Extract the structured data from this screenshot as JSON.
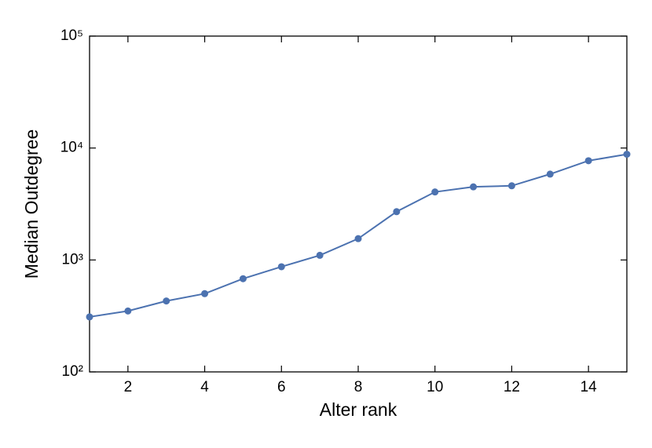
{
  "chart_data": {
    "type": "line",
    "x_label": "Alter rank",
    "y_label": "Median Outdegree",
    "x": [
      1,
      2,
      3,
      4,
      5,
      6,
      7,
      8,
      9,
      10,
      11,
      12,
      13,
      14,
      15
    ],
    "series": [
      {
        "name": "Median Outdegree",
        "color": "#4c72b0",
        "values": [
          310,
          350,
          430,
          500,
          680,
          870,
          1100,
          1550,
          2700,
          4050,
          4500,
          4600,
          5850,
          7700,
          8800
        ]
      }
    ],
    "xlim": [
      1,
      15
    ],
    "xticks": [
      2,
      4,
      6,
      8,
      10,
      12,
      14
    ],
    "ylim": [
      100,
      100000
    ],
    "y_log": true,
    "yticks": [
      {
        "value": 100,
        "label": "10²"
      },
      {
        "value": 1000,
        "label": "10³"
      },
      {
        "value": 10000,
        "label": "10⁴"
      },
      {
        "value": 100000,
        "label": "10⁵"
      }
    ]
  }
}
